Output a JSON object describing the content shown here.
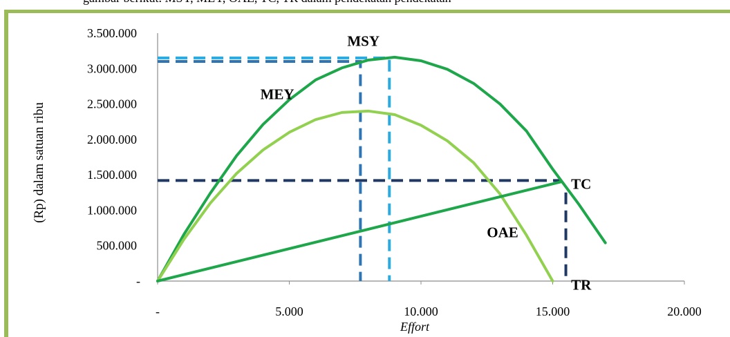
{
  "caption": "gambar berikut. MSY, MEY, OAE, TC, TR dalam pendekatan pendekatan",
  "chart_data": {
    "type": "line",
    "title": "",
    "xlabel": "Effort",
    "ylabel": "(Rp) dalam satuan ribu",
    "xlim": [
      0,
      20000
    ],
    "ylim": [
      0,
      3500000
    ],
    "x_ticks": [
      0,
      5000,
      10000,
      15000,
      20000
    ],
    "x_tick_labels": [
      "-",
      "5.000",
      "10.000",
      "15.000",
      "20.000"
    ],
    "y_ticks": [
      0,
      500000,
      1000000,
      1500000,
      2000000,
      2500000,
      3000000,
      3500000
    ],
    "y_tick_labels": [
      "-",
      "500.000",
      "1.000.000",
      "1.500.000",
      "2.000.000",
      "2.500.000",
      "3.000.000",
      "3.500.000"
    ],
    "grid": false,
    "legend": "none",
    "series": [
      {
        "color": "#1ea64a",
        "x": [
          0,
          1000,
          2000,
          3000,
          4000,
          5000,
          6000,
          7000,
          8000,
          9000,
          10000,
          11000,
          12000,
          13000,
          14000,
          15000,
          16000,
          17000
        ],
        "y": [
          0,
          660000,
          1240000,
          1770000,
          2210000,
          2560000,
          2840000,
          3010000,
          3120000,
          3160000,
          3110000,
          2990000,
          2790000,
          2500000,
          2120000,
          1580000,
          1080000,
          540000
        ]
      },
      {
        "color": "#92d050",
        "x": [
          0,
          1000,
          2000,
          3000,
          4000,
          5000,
          6000,
          7000,
          8000,
          9000,
          10000,
          11000,
          12000,
          13000,
          14000,
          15000
        ],
        "y": [
          0,
          590000,
          1100000,
          1520000,
          1850000,
          2100000,
          2280000,
          2380000,
          2400000,
          2350000,
          2200000,
          1980000,
          1670000,
          1230000,
          650000,
          0
        ]
      },
      {
        "color": "#1ea64a",
        "x": [
          0,
          15300
        ],
        "y": [
          0,
          1400000
        ]
      }
    ],
    "reference_lines": [
      {
        "name": "MSY",
        "color": "#29abe2",
        "dash": true,
        "x": [
          0,
          8800,
          8800
        ],
        "y": [
          3150000,
          3150000,
          0
        ]
      },
      {
        "name": "MEY",
        "color": "#2e75b6",
        "dash": true,
        "x": [
          0,
          7700,
          7700
        ],
        "y": [
          3100000,
          3100000,
          0
        ]
      },
      {
        "name": "TC",
        "color": "#1f3864",
        "dash": true,
        "x": [
          0,
          15300
        ],
        "y": [
          1420000,
          1420000
        ]
      },
      {
        "name": "OAE",
        "color": "#1f3864",
        "dash": true,
        "x": [
          15500,
          15500
        ],
        "y": [
          1250000,
          0
        ]
      }
    ],
    "annotations": [
      {
        "text": "MSY",
        "x": 7200,
        "y": 3320000
      },
      {
        "text": "MEY",
        "x": 3900,
        "y": 2570000
      },
      {
        "text": "TC",
        "x": 15700,
        "y": 1300000
      },
      {
        "text": "OAE",
        "x": 12500,
        "y": 620000
      },
      {
        "text": "TR",
        "x": 15700,
        "y": -120000
      }
    ]
  }
}
